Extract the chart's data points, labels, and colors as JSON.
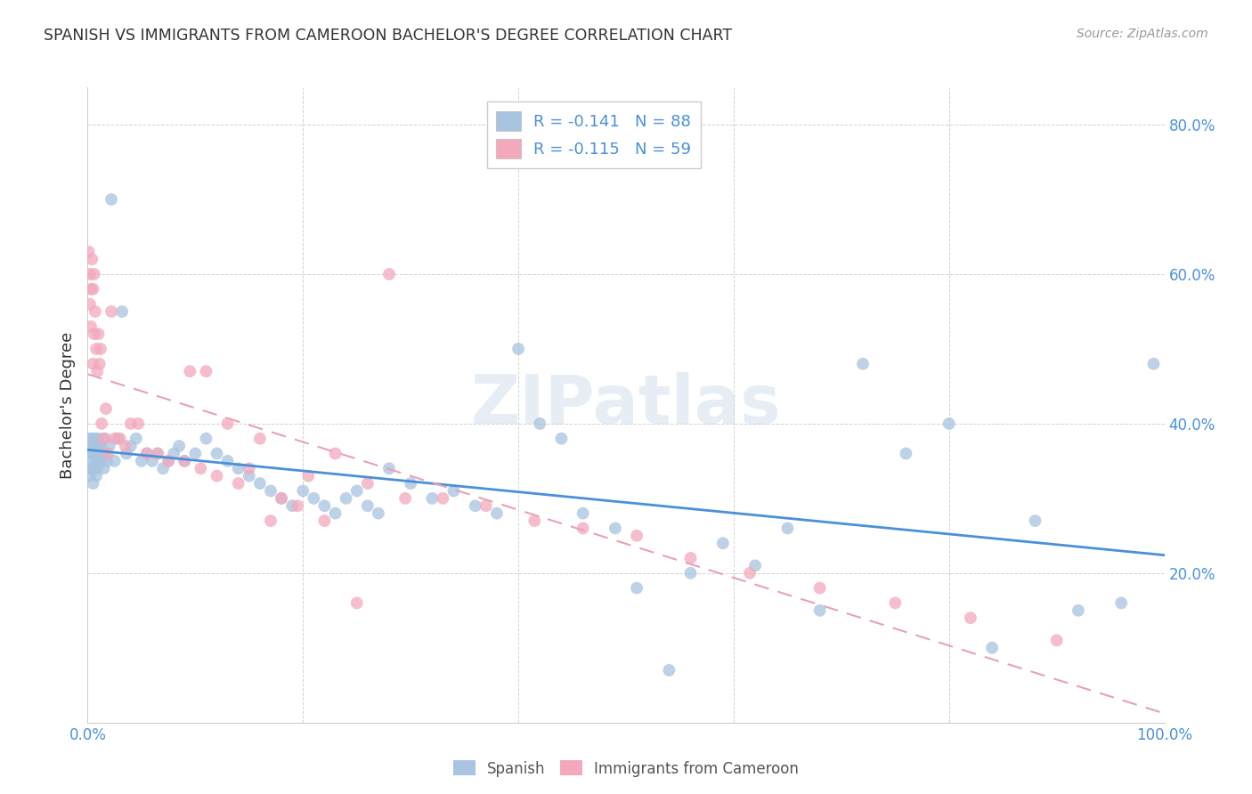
{
  "title": "SPANISH VS IMMIGRANTS FROM CAMEROON BACHELOR'S DEGREE CORRELATION CHART",
  "source": "Source: ZipAtlas.com",
  "ylabel": "Bachelor's Degree",
  "xlim": [
    0.0,
    1.0
  ],
  "ylim": [
    0.0,
    0.85
  ],
  "xticks": [
    0.0,
    0.2,
    0.4,
    0.6,
    0.8,
    1.0
  ],
  "xtick_labels": [
    "0.0%",
    "",
    "",
    "",
    "",
    "100.0%"
  ],
  "yticks": [
    0.2,
    0.4,
    0.6,
    0.8
  ],
  "ytick_labels": [
    "20.0%",
    "40.0%",
    "60.0%",
    "80.0%"
  ],
  "spanish_color": "#a8c4e0",
  "cameroon_color": "#f4a8bc",
  "spanish_line_color": "#4a90d9",
  "cameroon_line_color": "#e8a0b8",
  "legend_spanish_label": "R = -0.141   N = 88",
  "legend_cameroon_label": "R = -0.115   N = 59",
  "watermark": "ZIPatlas",
  "spanish_x": [
    0.001,
    0.002,
    0.002,
    0.003,
    0.003,
    0.004,
    0.004,
    0.005,
    0.005,
    0.006,
    0.006,
    0.007,
    0.007,
    0.008,
    0.008,
    0.009,
    0.009,
    0.01,
    0.01,
    0.011,
    0.012,
    0.013,
    0.014,
    0.015,
    0.016,
    0.017,
    0.018,
    0.02,
    0.022,
    0.025,
    0.028,
    0.032,
    0.036,
    0.04,
    0.045,
    0.05,
    0.055,
    0.06,
    0.065,
    0.07,
    0.075,
    0.08,
    0.085,
    0.09,
    0.1,
    0.11,
    0.12,
    0.13,
    0.14,
    0.15,
    0.16,
    0.17,
    0.18,
    0.19,
    0.2,
    0.21,
    0.22,
    0.23,
    0.24,
    0.25,
    0.26,
    0.27,
    0.28,
    0.3,
    0.32,
    0.34,
    0.36,
    0.38,
    0.4,
    0.42,
    0.44,
    0.46,
    0.49,
    0.51,
    0.54,
    0.56,
    0.59,
    0.62,
    0.65,
    0.68,
    0.72,
    0.76,
    0.8,
    0.84,
    0.88,
    0.92,
    0.96,
    0.99
  ],
  "spanish_y": [
    0.36,
    0.33,
    0.38,
    0.34,
    0.37,
    0.35,
    0.38,
    0.36,
    0.32,
    0.37,
    0.34,
    0.35,
    0.38,
    0.36,
    0.33,
    0.37,
    0.34,
    0.35,
    0.38,
    0.36,
    0.37,
    0.35,
    0.36,
    0.34,
    0.38,
    0.36,
    0.35,
    0.37,
    0.7,
    0.35,
    0.38,
    0.55,
    0.36,
    0.37,
    0.38,
    0.35,
    0.36,
    0.35,
    0.36,
    0.34,
    0.35,
    0.36,
    0.37,
    0.35,
    0.36,
    0.38,
    0.36,
    0.35,
    0.34,
    0.33,
    0.32,
    0.31,
    0.3,
    0.29,
    0.31,
    0.3,
    0.29,
    0.28,
    0.3,
    0.31,
    0.29,
    0.28,
    0.34,
    0.32,
    0.3,
    0.31,
    0.29,
    0.28,
    0.5,
    0.4,
    0.38,
    0.28,
    0.26,
    0.18,
    0.07,
    0.2,
    0.24,
    0.21,
    0.26,
    0.15,
    0.48,
    0.36,
    0.4,
    0.1,
    0.27,
    0.15,
    0.16,
    0.48
  ],
  "cameroon_x": [
    0.001,
    0.002,
    0.002,
    0.003,
    0.003,
    0.004,
    0.005,
    0.005,
    0.006,
    0.006,
    0.007,
    0.008,
    0.009,
    0.01,
    0.011,
    0.012,
    0.013,
    0.015,
    0.017,
    0.019,
    0.022,
    0.025,
    0.03,
    0.035,
    0.04,
    0.047,
    0.055,
    0.065,
    0.075,
    0.09,
    0.105,
    0.12,
    0.14,
    0.16,
    0.18,
    0.205,
    0.23,
    0.26,
    0.295,
    0.33,
    0.37,
    0.415,
    0.46,
    0.51,
    0.56,
    0.615,
    0.68,
    0.75,
    0.82,
    0.9,
    0.095,
    0.11,
    0.13,
    0.15,
    0.17,
    0.195,
    0.22,
    0.25,
    0.28
  ],
  "cameroon_y": [
    0.63,
    0.6,
    0.56,
    0.58,
    0.53,
    0.62,
    0.58,
    0.48,
    0.6,
    0.52,
    0.55,
    0.5,
    0.47,
    0.52,
    0.48,
    0.5,
    0.4,
    0.38,
    0.42,
    0.36,
    0.55,
    0.38,
    0.38,
    0.37,
    0.4,
    0.4,
    0.36,
    0.36,
    0.35,
    0.35,
    0.34,
    0.33,
    0.32,
    0.38,
    0.3,
    0.33,
    0.36,
    0.32,
    0.3,
    0.3,
    0.29,
    0.27,
    0.26,
    0.25,
    0.22,
    0.2,
    0.18,
    0.16,
    0.14,
    0.11,
    0.47,
    0.47,
    0.4,
    0.34,
    0.27,
    0.29,
    0.27,
    0.16,
    0.6
  ]
}
